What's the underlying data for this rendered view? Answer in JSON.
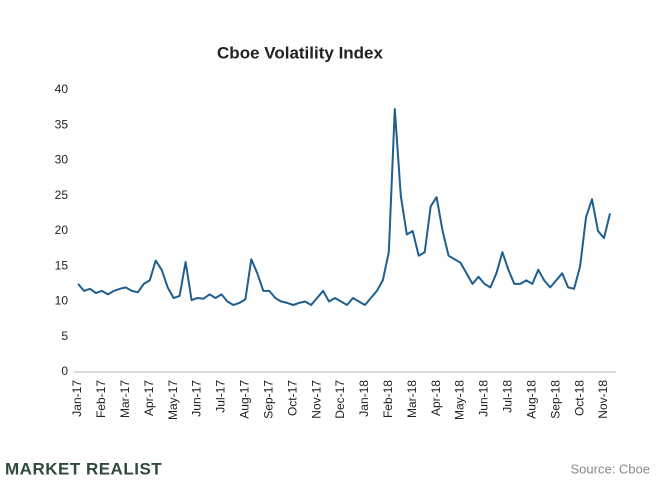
{
  "chart_data": {
    "type": "line",
    "title": "Cboe Volatility Index",
    "categories": [
      "Jan-17",
      null,
      null,
      null,
      "Feb-17",
      null,
      null,
      null,
      "Mar-17",
      null,
      null,
      null,
      "Apr-17",
      null,
      null,
      null,
      "May-17",
      null,
      null,
      null,
      "Jun-17",
      null,
      null,
      null,
      "Jul-17",
      null,
      null,
      null,
      "Aug-17",
      null,
      null,
      null,
      "Sep-17",
      null,
      null,
      null,
      "Oct-17",
      null,
      null,
      null,
      "Nov-17",
      null,
      null,
      null,
      "Dec-17",
      null,
      null,
      null,
      "Jan-18",
      null,
      null,
      null,
      "Feb-18",
      null,
      null,
      null,
      "Mar-18",
      null,
      null,
      null,
      "Apr-18",
      null,
      null,
      null,
      "May-18",
      null,
      null,
      null,
      "Jun-18",
      null,
      null,
      null,
      "Jul-18",
      null,
      null,
      null,
      "Aug-18",
      null,
      null,
      null,
      "Sep-18",
      null,
      null,
      null,
      "Oct-18",
      null,
      null,
      null,
      "Nov-18",
      null
    ],
    "values": [
      12.5,
      11.5,
      11.8,
      11.2,
      11.5,
      11.0,
      11.5,
      11.8,
      12.0,
      11.5,
      11.3,
      12.5,
      13.0,
      15.8,
      14.5,
      12.0,
      10.5,
      10.8,
      15.6,
      10.2,
      10.5,
      10.4,
      11.0,
      10.5,
      11.0,
      10.0,
      9.5,
      9.8,
      10.3,
      16.0,
      14.0,
      11.5,
      11.5,
      10.5,
      10.0,
      9.8,
      9.5,
      9.8,
      10.0,
      9.5,
      10.5,
      11.5,
      10.0,
      10.5,
      10.0,
      9.5,
      10.5,
      10.0,
      9.5,
      10.5,
      11.5,
      13.0,
      17.0,
      37.3,
      25.0,
      19.5,
      20.0,
      16.5,
      17.0,
      23.5,
      24.8,
      20.0,
      16.5,
      16.0,
      15.5,
      14.0,
      12.5,
      13.5,
      12.5,
      12.0,
      14.0,
      17.0,
      14.5,
      12.5,
      12.5,
      13.0,
      12.5,
      14.5,
      13.0,
      12.0,
      13.0,
      14.0,
      12.0,
      11.8,
      15.0,
      22.0,
      24.5,
      20.0,
      19.0,
      22.5
    ],
    "color": "#1f5f8f",
    "ylim": [
      0,
      40
    ],
    "yticks": [
      0,
      5,
      10,
      15,
      20,
      25,
      30,
      35,
      40
    ],
    "grid": false,
    "logo": "MARKET REALIST",
    "source": "Source: Cboe"
  }
}
